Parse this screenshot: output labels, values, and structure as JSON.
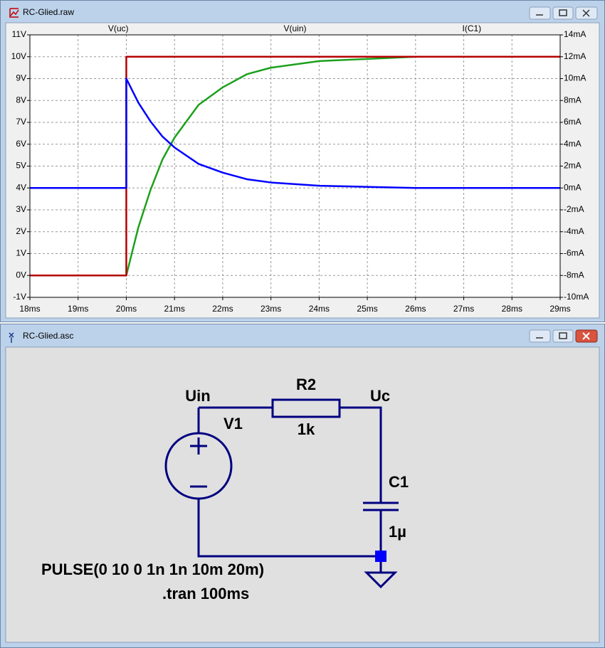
{
  "windows": [
    {
      "title": "RC-Glied.raw"
    },
    {
      "title": "RC-Glied.asc"
    }
  ],
  "chart_data": {
    "type": "line",
    "series": [
      {
        "name": "V(uc)",
        "color": "#1ca01c",
        "x": [
          18,
          20,
          20.25,
          20.5,
          20.75,
          21,
          21.5,
          22,
          22.5,
          23,
          24,
          25,
          26,
          29
        ],
        "values": [
          0,
          0,
          2.2,
          3.9,
          5.3,
          6.3,
          7.8,
          8.6,
          9.2,
          9.5,
          9.8,
          9.9,
          10,
          10
        ]
      },
      {
        "name": "V(uin)",
        "color": "#b40000",
        "x": [
          18,
          20,
          20,
          29
        ],
        "values": [
          0,
          0,
          10,
          10
        ]
      },
      {
        "name": "I(C1)",
        "color": "#0000ff",
        "axis": "y2",
        "x": [
          18,
          20,
          20,
          20.25,
          20.5,
          20.75,
          21,
          21.5,
          22,
          22.5,
          23,
          24,
          25,
          26,
          29
        ],
        "values": [
          0,
          0,
          10,
          7.8,
          6.1,
          4.7,
          3.7,
          2.2,
          1.4,
          0.8,
          0.5,
          0.2,
          0.1,
          0,
          0
        ]
      }
    ],
    "xlim": [
      18,
      29
    ],
    "xticks": [
      {
        "value": 18,
        "label": "18ms"
      },
      {
        "value": 19,
        "label": "19ms"
      },
      {
        "value": 20,
        "label": "20ms"
      },
      {
        "value": 21,
        "label": "21ms"
      },
      {
        "value": 22,
        "label": "22ms"
      },
      {
        "value": 23,
        "label": "23ms"
      },
      {
        "value": 24,
        "label": "24ms"
      },
      {
        "value": 25,
        "label": "25ms"
      },
      {
        "value": 26,
        "label": "26ms"
      },
      {
        "value": 27,
        "label": "27ms"
      },
      {
        "value": 28,
        "label": "28ms"
      },
      {
        "value": 29,
        "label": "29ms"
      }
    ],
    "ylim": [
      -1,
      11
    ],
    "yticks": [
      {
        "value": -1,
        "label": "-1V"
      },
      {
        "value": 0,
        "label": "0V"
      },
      {
        "value": 1,
        "label": "1V"
      },
      {
        "value": 2,
        "label": "2V"
      },
      {
        "value": 3,
        "label": "3V"
      },
      {
        "value": 4,
        "label": "4V"
      },
      {
        "value": 5,
        "label": "5V"
      },
      {
        "value": 6,
        "label": "6V"
      },
      {
        "value": 7,
        "label": "7V"
      },
      {
        "value": 8,
        "label": "8V"
      },
      {
        "value": 9,
        "label": "9V"
      },
      {
        "value": 10,
        "label": "10V"
      },
      {
        "value": 11,
        "label": "11V"
      }
    ],
    "y2lim": [
      -10,
      14
    ],
    "y2ticks": [
      {
        "value": -10,
        "label": "-10mA"
      },
      {
        "value": -8,
        "label": "-8mA"
      },
      {
        "value": -6,
        "label": "-6mA"
      },
      {
        "value": -4,
        "label": "-4mA"
      },
      {
        "value": -2,
        "label": "-2mA"
      },
      {
        "value": 0,
        "label": "0mA"
      },
      {
        "value": 2,
        "label": "2mA"
      },
      {
        "value": 4,
        "label": "4mA"
      },
      {
        "value": 6,
        "label": "6mA"
      },
      {
        "value": 8,
        "label": "8mA"
      },
      {
        "value": 10,
        "label": "10mA"
      },
      {
        "value": 12,
        "label": "12mA"
      },
      {
        "value": 14,
        "label": "14mA"
      }
    ],
    "grid": true
  },
  "schematic": {
    "labels": [
      "Uin",
      "V1",
      "R2",
      "1k",
      "Uc",
      "C1",
      "1µ",
      "PULSE(0 10 0 1n 1n 10m 20m)",
      ".tran 100ms"
    ]
  }
}
